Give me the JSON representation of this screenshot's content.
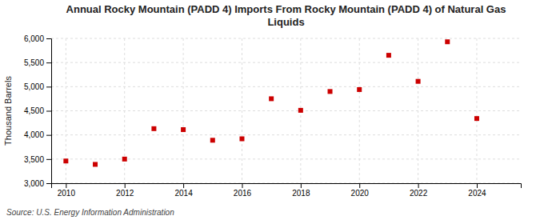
{
  "chart_data": {
    "type": "scatter",
    "title": "Annual Rocky Mountain (PADD 4) Imports From Rocky Mountain (PADD 4) of Natural Gas\nLiquids",
    "y_label": "Thousand Barrels",
    "source": "Source: U.S. Energy Information Administration",
    "x": [
      2010,
      2011,
      2012,
      2013,
      2014,
      2015,
      2016,
      2017,
      2018,
      2019,
      2020,
      2021,
      2022,
      2023,
      2024
    ],
    "values": [
      3460,
      3390,
      3500,
      4130,
      4110,
      3890,
      3920,
      4750,
      4510,
      4900,
      4940,
      5650,
      5110,
      5930,
      4340
    ],
    "color": "#cc0000",
    "marker": "square",
    "xlim": [
      2009.5,
      2025.5
    ],
    "xticks": [
      2010,
      2012,
      2014,
      2016,
      2018,
      2020,
      2022,
      2024
    ],
    "ylim": [
      3000,
      6000
    ],
    "yticks": [
      {
        "value": 3000,
        "label": "3,000"
      },
      {
        "value": 3500,
        "label": "3,500"
      },
      {
        "value": 4000,
        "label": "4,000"
      },
      {
        "value": 4500,
        "label": "4,500"
      },
      {
        "value": 5000,
        "label": "5,000"
      },
      {
        "value": 5500,
        "label": "5,500"
      },
      {
        "value": 6000,
        "label": "6,000"
      }
    ],
    "grid": true
  }
}
